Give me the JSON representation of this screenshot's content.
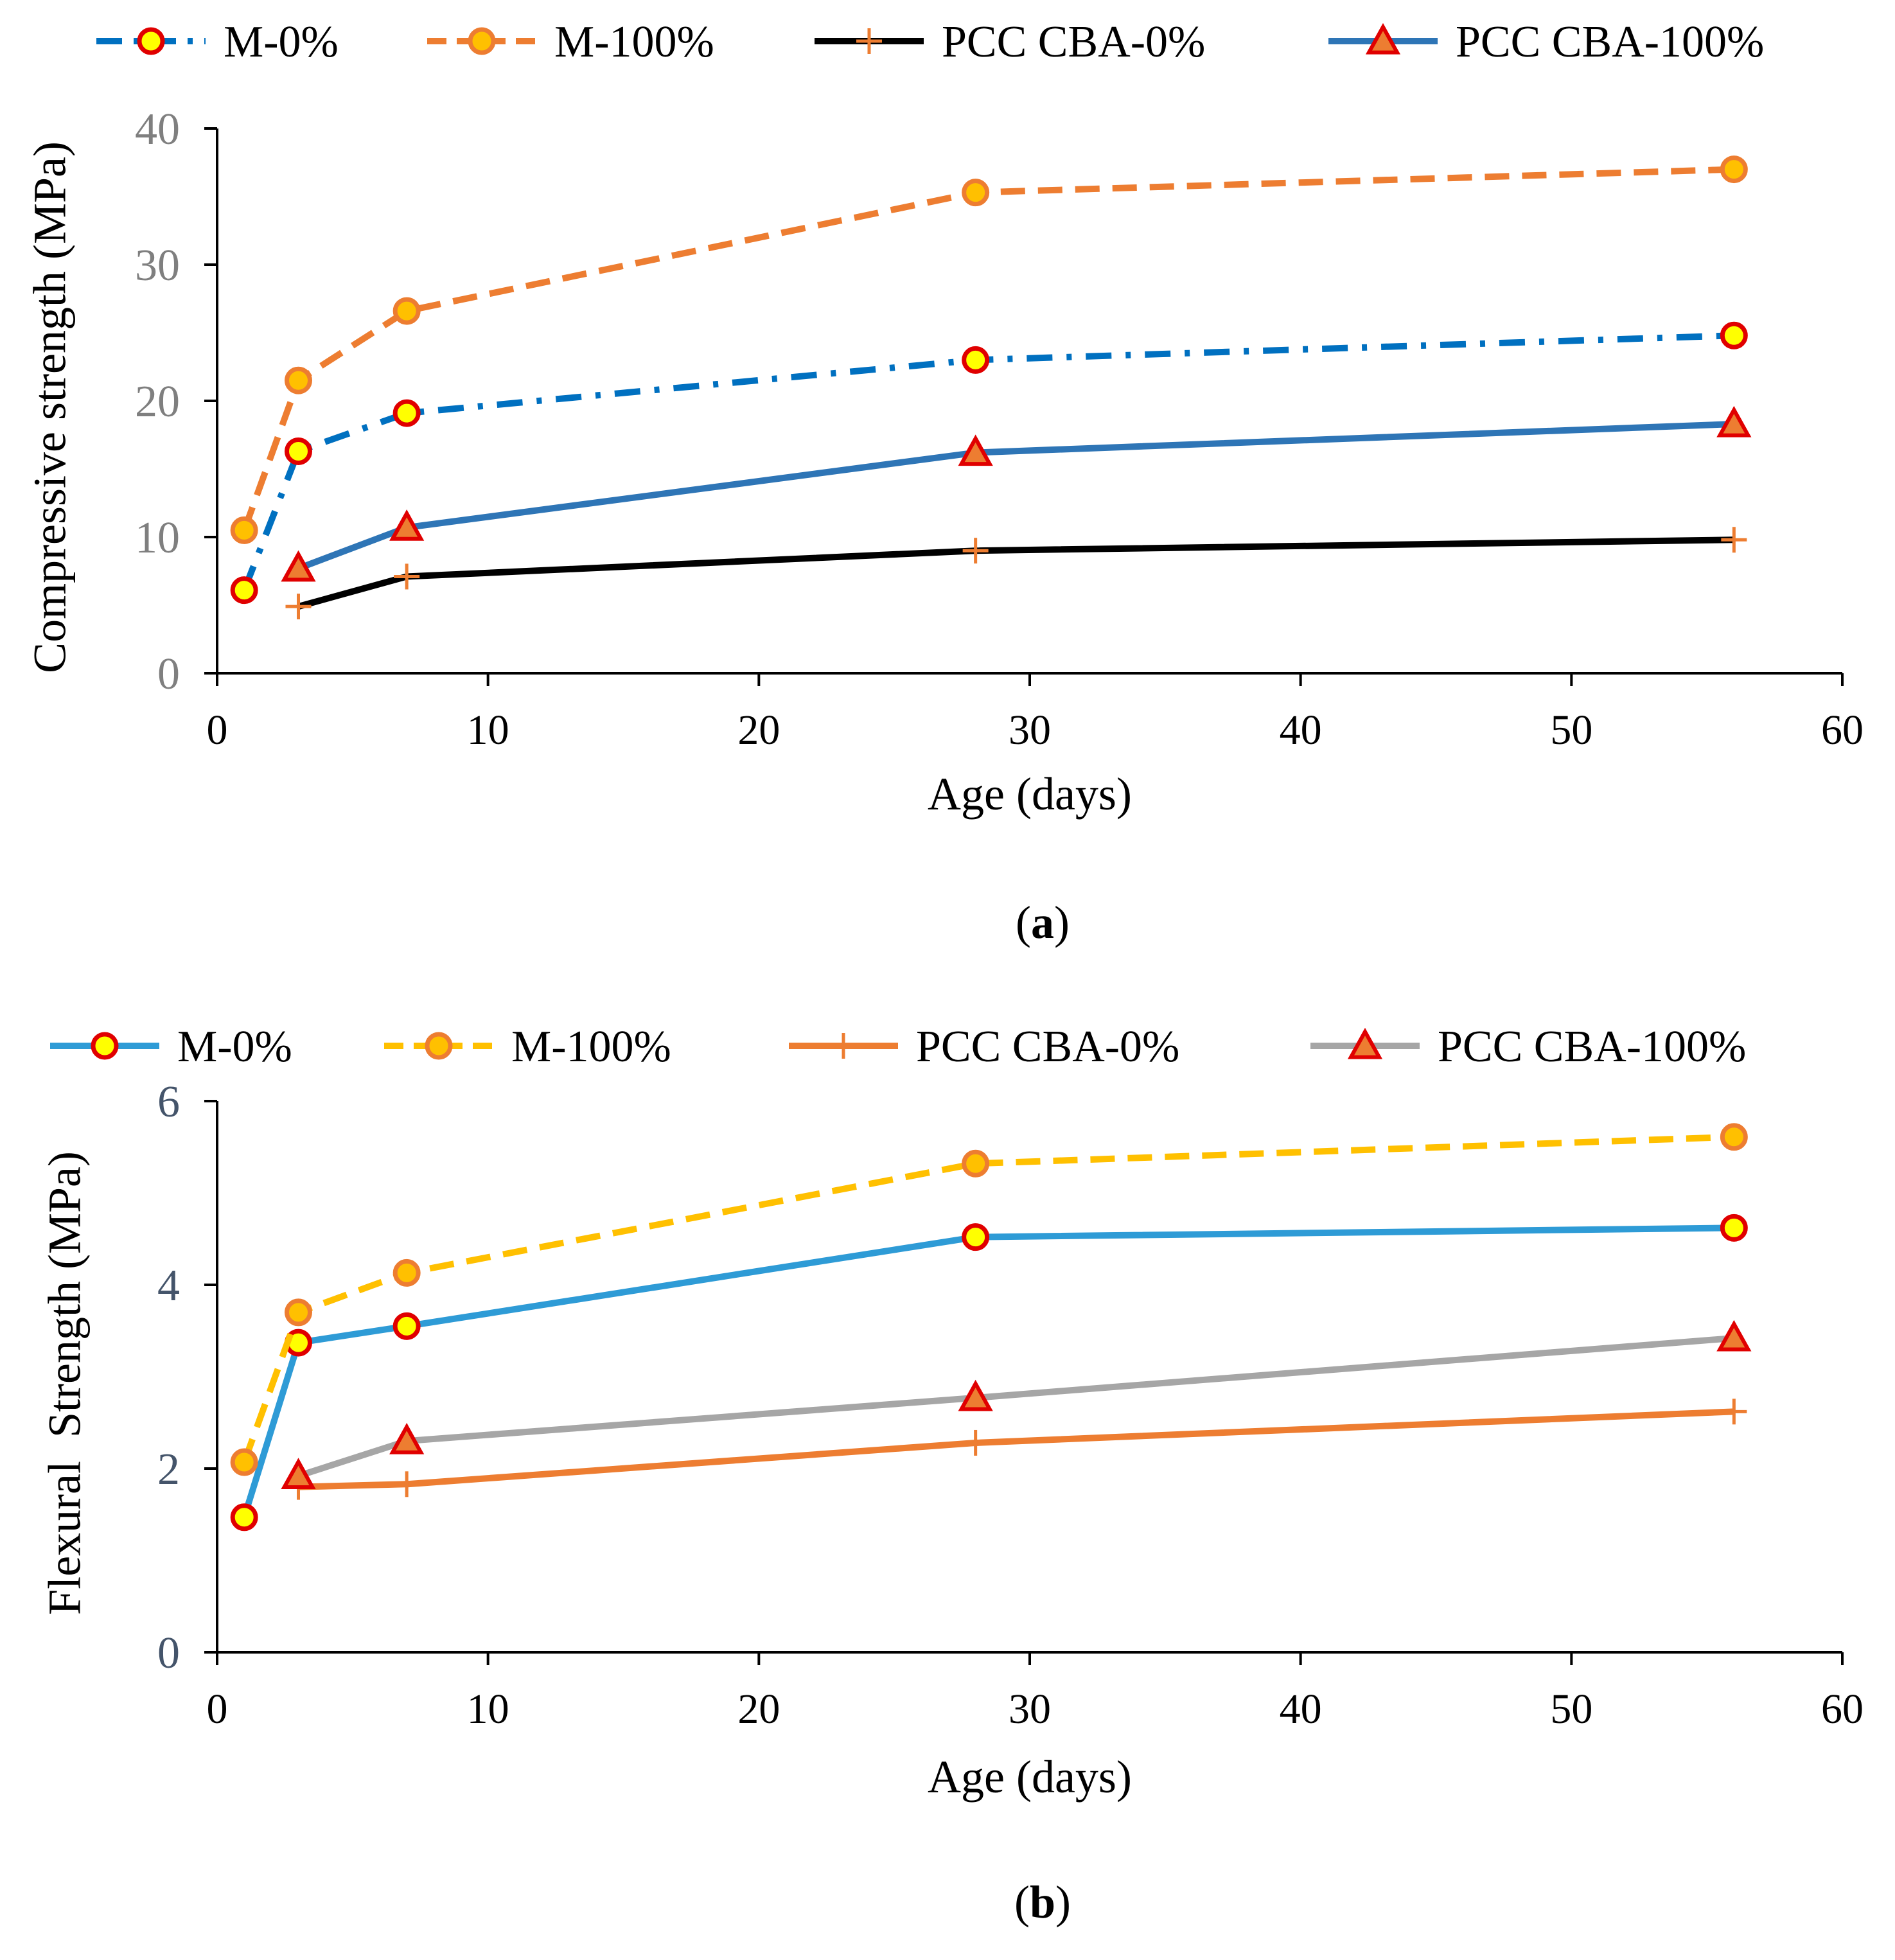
{
  "chart_data": [
    {
      "type": "line",
      "panel_label": "a",
      "title": "",
      "xlabel": "Age (days)",
      "ylabel": "Compressive strength (MPa)",
      "xlim": [
        0,
        60
      ],
      "ylim": [
        0,
        40
      ],
      "xticks": [
        0,
        10,
        20,
        30,
        40,
        50,
        60
      ],
      "yticks": [
        0,
        10,
        20,
        30,
        40
      ],
      "grid": false,
      "legend_position": "top",
      "series": [
        {
          "name": "M-0%",
          "x": [
            1,
            3,
            7,
            28,
            56
          ],
          "values": [
            6.1,
            16.3,
            19.1,
            23.0,
            24.8
          ],
          "color": "#0070C0",
          "dash": "dashdot",
          "marker": "circle",
          "marker_fill": "#FFFF00",
          "marker_edge": "#E00000"
        },
        {
          "name": "M-100%",
          "x": [
            1,
            3,
            7,
            28,
            56
          ],
          "values": [
            10.5,
            21.5,
            26.6,
            35.3,
            37.0
          ],
          "color": "#ED7D31",
          "dash": "dash",
          "marker": "circle",
          "marker_fill": "#FFC000",
          "marker_edge": "#ED7D31"
        },
        {
          "name": "PCC CBA-0%",
          "x": [
            3,
            7,
            28,
            56
          ],
          "values": [
            4.9,
            7.1,
            9.0,
            9.8
          ],
          "color": "#000000",
          "dash": "solid",
          "marker": "plus",
          "marker_fill": "#ED7D31",
          "marker_edge": "#ED7D31"
        },
        {
          "name": "PCC CBA-100%",
          "x": [
            3,
            7,
            28,
            56
          ],
          "values": [
            7.7,
            10.7,
            16.2,
            18.3
          ],
          "color": "#2E75B6",
          "dash": "solid",
          "marker": "triangle",
          "marker_fill": "#ED7D31",
          "marker_edge": "#E00000"
        }
      ]
    },
    {
      "type": "line",
      "panel_label": "b",
      "title": "",
      "xlabel": "Age (days)",
      "ylabel": "Flexural  Strength (MPa)",
      "xlim": [
        0,
        60
      ],
      "ylim": [
        0,
        6
      ],
      "xticks": [
        0,
        10,
        20,
        30,
        40,
        50,
        60
      ],
      "yticks": [
        0,
        2,
        4,
        6
      ],
      "grid": false,
      "legend_position": "top",
      "series": [
        {
          "name": "M-0%",
          "x": [
            1,
            3,
            7,
            28,
            56
          ],
          "values": [
            1.47,
            3.37,
            3.55,
            4.52,
            4.62
          ],
          "color": "#2E9BD6",
          "dash": "solid",
          "marker": "circle",
          "marker_fill": "#FFFF00",
          "marker_edge": "#E00000"
        },
        {
          "name": "M-100%",
          "x": [
            1,
            3,
            7,
            28,
            56
          ],
          "values": [
            2.07,
            3.7,
            4.13,
            5.32,
            5.61
          ],
          "color": "#FFC000",
          "dash": "dash",
          "marker": "circle",
          "marker_fill": "#FFC000",
          "marker_edge": "#ED7D31"
        },
        {
          "name": "PCC CBA-0%",
          "x": [
            3,
            7,
            28,
            56
          ],
          "values": [
            1.8,
            1.83,
            2.28,
            2.62
          ],
          "color": "#ED7D31",
          "dash": "solid",
          "marker": "plus",
          "marker_fill": "#ED7D31",
          "marker_edge": "#ED7D31"
        },
        {
          "name": "PCC CBA-100%",
          "x": [
            3,
            7,
            28,
            56
          ],
          "values": [
            1.92,
            2.3,
            2.77,
            3.42
          ],
          "color": "#A6A6A6",
          "dash": "solid",
          "marker": "triangle",
          "marker_fill": "#ED7D31",
          "marker_edge": "#E00000"
        }
      ]
    }
  ]
}
